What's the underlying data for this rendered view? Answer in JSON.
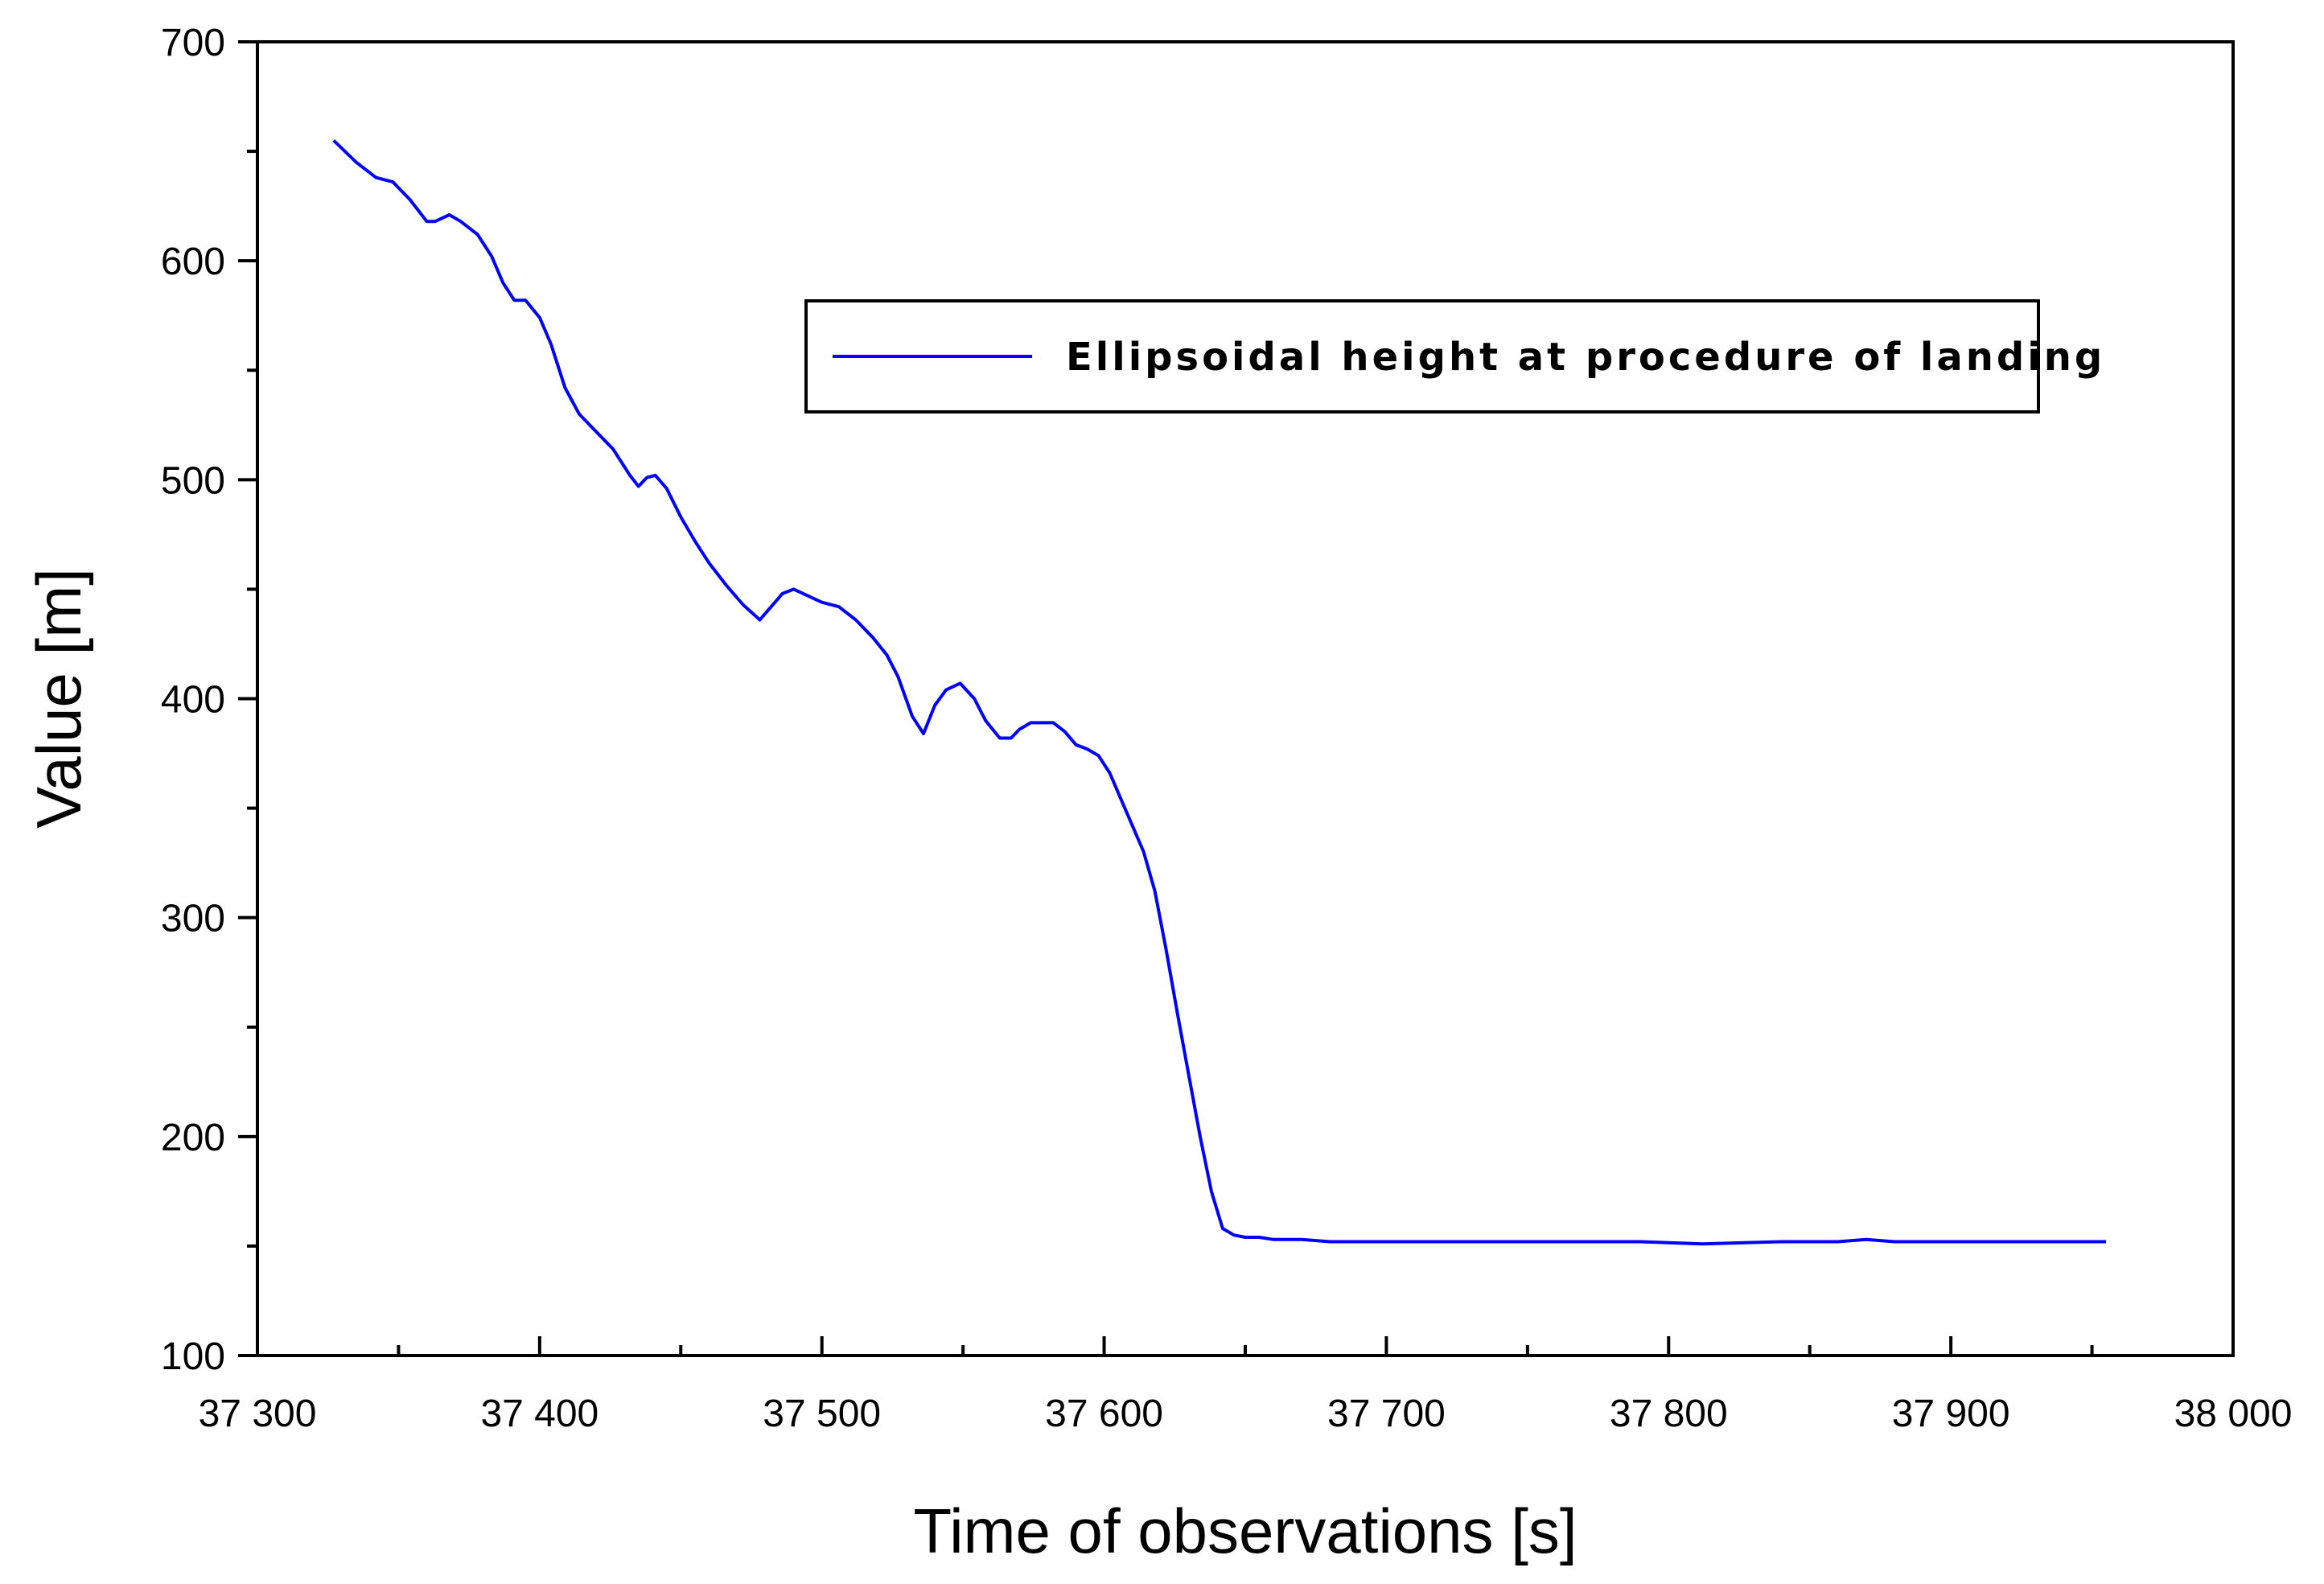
{
  "chart_data": {
    "type": "line",
    "title": "",
    "xlabel": "Time of observations [s]",
    "ylabel": "Value [m]",
    "xlim": [
      37300,
      38000
    ],
    "ylim": [
      100,
      700
    ],
    "x_ticks": [
      37300,
      37400,
      37500,
      37600,
      37700,
      37800,
      37900,
      38000
    ],
    "x_tick_labels": [
      "37 300",
      "37 400",
      "37 500",
      "37 600",
      "37 700",
      "37 800",
      "37 900",
      "38 000"
    ],
    "y_ticks": [
      100,
      200,
      300,
      400,
      500,
      600,
      700
    ],
    "y_tick_labels": [
      "100",
      "200",
      "300",
      "400",
      "500",
      "600",
      "700"
    ],
    "grid": false,
    "legend_position": "top-right",
    "series": [
      {
        "name": "Ellipsoidal height at procedure of landing",
        "color": "#0000ff",
        "x": [
          37327,
          37335,
          37342,
          37348,
          37354,
          37360,
          37363,
          37368,
          37372,
          37378,
          37383,
          37387,
          37391,
          37395,
          37400,
          37404,
          37409,
          37414,
          37420,
          37426,
          37432,
          37435,
          37438,
          37441,
          37445,
          37450,
          37455,
          37460,
          37466,
          37472,
          37478,
          37482,
          37486,
          37490,
          37495,
          37500,
          37506,
          37512,
          37518,
          37523,
          37527,
          37532,
          37536,
          37540,
          37544,
          37549,
          37554,
          37558,
          37563,
          37567,
          37570,
          37574,
          37578,
          37582,
          37586,
          37590,
          37594,
          37598,
          37602,
          37606,
          37610,
          37614,
          37618,
          37622,
          37626,
          37630,
          37634,
          37638,
          37642,
          37646,
          37650,
          37655,
          37660,
          37670,
          37680,
          37700,
          37720,
          37735,
          37760,
          37790,
          37812,
          37840,
          37860,
          37870,
          37880,
          37890,
          37900,
          37910,
          37920,
          37930,
          37940,
          37955
        ],
        "y": [
          655,
          645,
          638,
          636,
          628,
          618,
          618,
          621,
          618,
          612,
          602,
          590,
          582,
          582,
          574,
          562,
          542,
          530,
          522,
          514,
          502,
          497,
          501,
          502,
          496,
          483,
          472,
          462,
          452,
          443,
          436,
          442,
          448,
          450,
          447,
          444,
          442,
          436,
          428,
          420,
          410,
          392,
          384,
          397,
          404,
          407,
          400,
          390,
          382,
          382,
          386,
          389,
          389,
          389,
          385,
          379,
          377,
          374,
          366,
          354,
          342,
          330,
          312,
          285,
          256,
          228,
          200,
          175,
          158,
          155,
          154,
          154,
          153,
          153,
          152,
          152,
          152,
          152,
          152,
          152,
          151,
          152,
          152,
          153,
          152,
          152,
          152,
          152,
          152,
          152,
          152,
          152
        ]
      }
    ]
  }
}
